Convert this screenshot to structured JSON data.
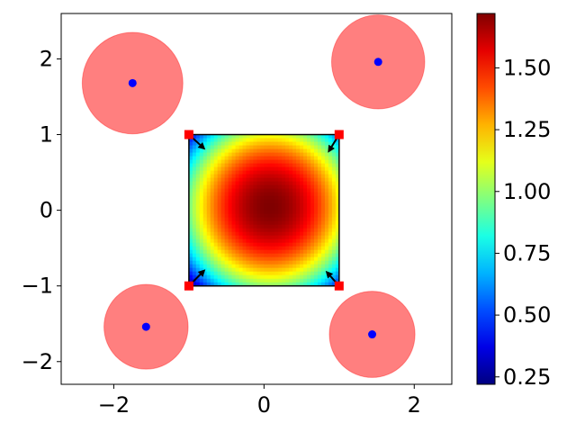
{
  "chart_data": {
    "type": "heatmap",
    "title": "",
    "xlabel": "",
    "ylabel": "",
    "xlim": [
      -2.7,
      2.5
    ],
    "ylim": [
      -2.3,
      2.6
    ],
    "x_ticks": [
      {
        "value": -2,
        "label": "−2"
      },
      {
        "value": 0,
        "label": "0"
      },
      {
        "value": 2,
        "label": "2"
      }
    ],
    "y_ticks": [
      {
        "value": 2,
        "label": "2"
      },
      {
        "value": 1,
        "label": "1"
      },
      {
        "value": 0,
        "label": "0"
      },
      {
        "value": -1,
        "label": "−1"
      },
      {
        "value": -2,
        "label": "−2"
      }
    ],
    "grid": false,
    "heatmap": {
      "x_range": [
        -1,
        1
      ],
      "y_range": [
        -1,
        1
      ],
      "center": [
        0.08,
        0.05
      ],
      "center_value": 1.72,
      "corner_value": 0.22,
      "colormap": "jet"
    },
    "colorbar": {
      "min": 0.22,
      "max": 1.72,
      "ticks": [
        {
          "value": 0.25,
          "label": "0.25"
        },
        {
          "value": 0.5,
          "label": "0.50"
        },
        {
          "value": 0.75,
          "label": "0.75"
        },
        {
          "value": 1.0,
          "label": "1.00"
        },
        {
          "value": 1.25,
          "label": "1.25"
        },
        {
          "value": 1.5,
          "label": "1.50"
        }
      ]
    },
    "obstacles": [
      {
        "x": -1.75,
        "y": 1.68,
        "radius": 0.67
      },
      {
        "x": 1.52,
        "y": 1.96,
        "radius": 0.62
      },
      {
        "x": -1.57,
        "y": -1.54,
        "radius": 0.56
      },
      {
        "x": 1.44,
        "y": -1.64,
        "radius": 0.57
      }
    ],
    "corners": [
      {
        "x": -1,
        "y": 1,
        "dx": 0.22,
        "dy": -0.2
      },
      {
        "x": 1,
        "y": 1,
        "dx": -0.15,
        "dy": -0.24
      },
      {
        "x": -1,
        "y": -1,
        "dx": 0.22,
        "dy": 0.22
      },
      {
        "x": 1,
        "y": -1,
        "dx": -0.18,
        "dy": 0.2
      }
    ],
    "colors": {
      "obstacle_fill": "#ff0000",
      "obstacle_alpha": 0.5,
      "obstacle_center": "#0000ff",
      "corner_marker": "#ff0000",
      "arrow": "#000000"
    }
  }
}
